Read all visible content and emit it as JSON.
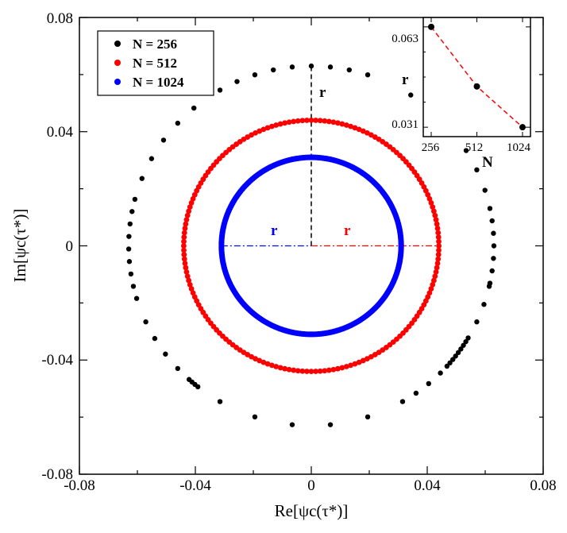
{
  "chart_data": {
    "type": "scatter",
    "xlabel": "Re[ψc(τ*)]",
    "ylabel": "Im[ψc(τ*)]",
    "xlim": [
      -0.08,
      0.08
    ],
    "ylim": [
      -0.08,
      0.08
    ],
    "xticks": [
      "-0.08",
      "-0.04",
      "0",
      "0.04",
      "0.08"
    ],
    "yticks": [
      "-0.08",
      "-0.04",
      "0",
      "0.04",
      "0.08"
    ],
    "legend": "top-left",
    "series": [
      {
        "name": "N = 256",
        "color": "#000000",
        "radius": 0.063,
        "distribution": "sparse, clustered ring"
      },
      {
        "name": "N = 512",
        "color": "#ff0000",
        "radius": 0.044,
        "distribution": "dense ring"
      },
      {
        "name": "N = 1024",
        "color": "#0000ff",
        "radius": 0.031,
        "distribution": "continuous ring"
      }
    ],
    "annotations": [
      {
        "text": "r",
        "color": "#000000",
        "line": "vertical dashed from (0,0) to (0,0.063)"
      },
      {
        "text": "r",
        "color": "#ff0000",
        "line": "horizontal dash-dot from (0,0) to (0.044,0)"
      },
      {
        "text": "r",
        "color": "#0000ff",
        "line": "horizontal dash-dot from (-0.031,0) to (0,0)"
      }
    ],
    "inset": {
      "type": "line",
      "xlabel": "N",
      "ylabel": "r",
      "x": [
        256,
        512,
        1024
      ],
      "y": [
        0.063,
        0.044,
        0.031
      ],
      "xticks": [
        "256",
        "512",
        "1024"
      ],
      "yticks": [
        "0.031",
        "0.063"
      ],
      "ylim": [
        0.028,
        0.066
      ],
      "line_color": "#ff0000",
      "marker_color": "#000000"
    }
  }
}
